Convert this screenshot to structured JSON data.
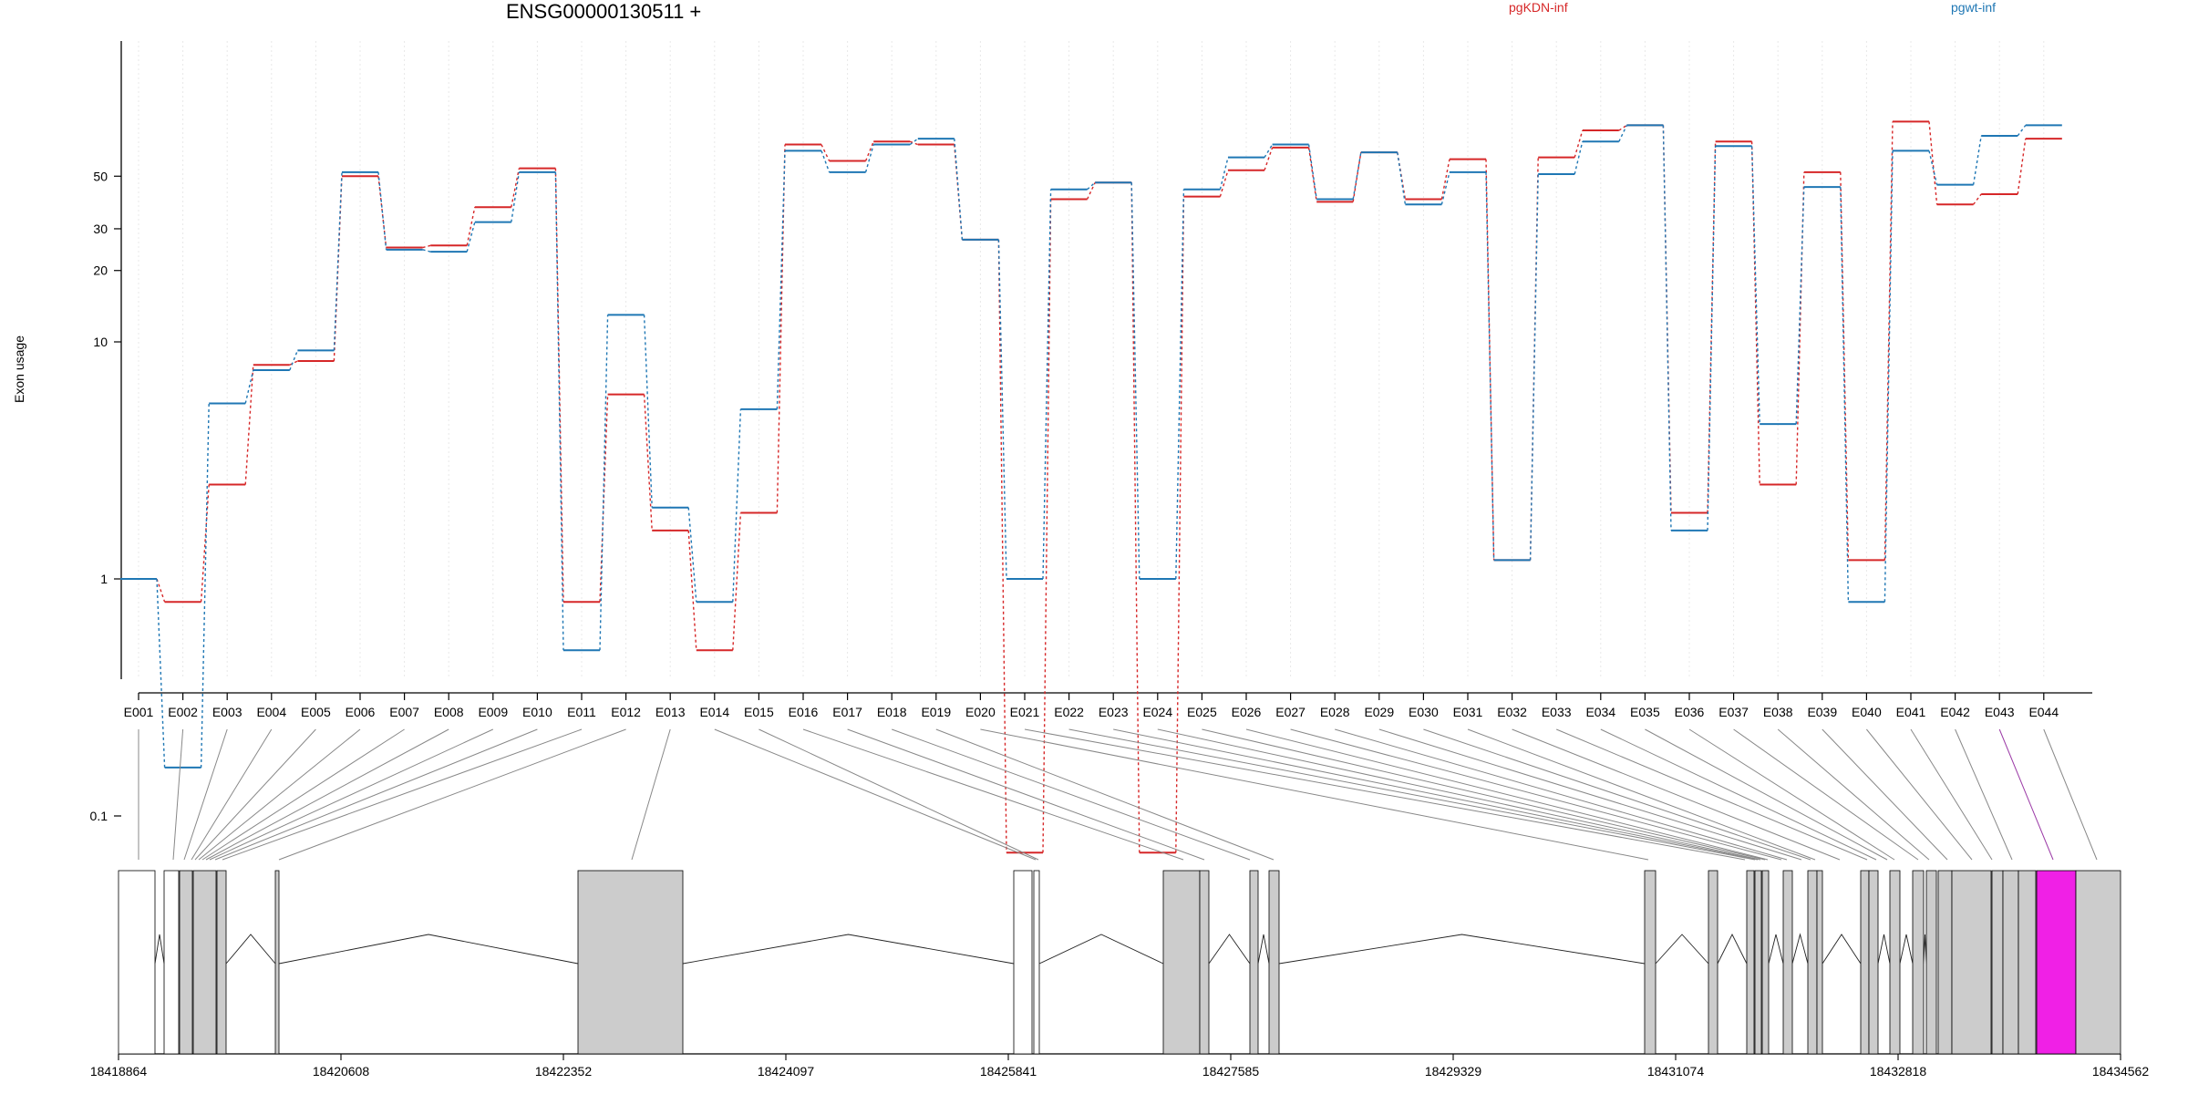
{
  "chart_data": {
    "type": "line",
    "title": "ENSG00000130511 +",
    "ylabel": "Exon usage",
    "xlabel": "",
    "yscale": "log",
    "ylim": [
      0.08,
      100
    ],
    "yticks": [
      0.1,
      1,
      10,
      20,
      30,
      50
    ],
    "ytick_labels": [
      "0.1",
      "1",
      "10",
      "20",
      "30",
      "50"
    ],
    "grid": "vertical",
    "legend_placement": "top",
    "categories": [
      "E001",
      "E002",
      "E003",
      "E004",
      "E005",
      "E006",
      "E007",
      "E008",
      "E009",
      "E010",
      "E011",
      "E012",
      "E013",
      "E014",
      "E015",
      "E016",
      "E017",
      "E018",
      "E019",
      "E020",
      "E021",
      "E022",
      "E023",
      "E024",
      "E025",
      "E026",
      "E027",
      "E028",
      "E029",
      "E030",
      "E031",
      "E032",
      "E033",
      "E034",
      "E035",
      "E036",
      "E037",
      "E038",
      "E039",
      "E040",
      "E041",
      "E042",
      "E043",
      "E044"
    ],
    "series": [
      {
        "name": "pgKDN-inf",
        "color": "#d62728",
        "values": [
          1.0,
          0.8,
          2.5,
          8.0,
          8.3,
          50,
          25,
          25.5,
          37,
          54,
          0.8,
          6.0,
          1.6,
          0.5,
          1.9,
          68,
          58,
          70,
          68,
          27,
          0.07,
          40,
          47,
          0.07,
          41,
          53,
          66,
          39,
          63,
          40,
          59,
          1.2,
          60,
          78,
          82,
          1.9,
          70,
          2.5,
          52,
          1.2,
          85,
          38,
          42,
          72
        ]
      },
      {
        "name": "pgwt-inf",
        "color": "#1f77b4",
        "values": [
          1.0,
          0.16,
          5.5,
          7.6,
          9.2,
          52,
          24.5,
          24,
          32,
          52,
          0.5,
          13,
          2.0,
          0.8,
          5.2,
          64,
          52,
          68,
          72,
          27,
          1.0,
          44,
          47,
          1.0,
          44,
          60,
          68,
          40,
          63,
          38,
          52,
          1.2,
          51,
          70,
          82,
          1.6,
          67,
          4.5,
          45,
          0.8,
          64,
          46,
          74,
          82
        ]
      }
    ],
    "gene_model": {
      "xtick_labels": [
        "18418864",
        "18420608",
        "18422352",
        "18424097",
        "18425841",
        "18427585",
        "18429329",
        "18431074",
        "18432818",
        "18434562"
      ],
      "highlight_color": "#f020e6",
      "highlight_exon": "E043"
    }
  }
}
